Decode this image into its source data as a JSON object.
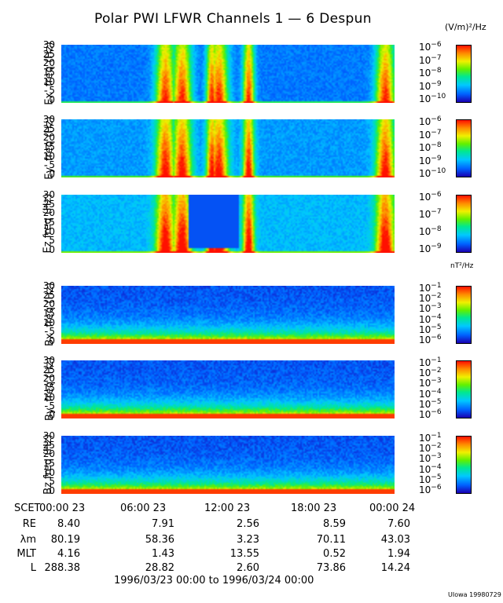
{
  "title": "Polar PWI LFWR Channels 1 — 6 Despun",
  "units_e": "(V/m)²/Hz",
  "units_b": "nT²/Hz",
  "chart_data": {
    "type": "heatmap",
    "panels": [
      {
        "ylabel": "Ex' freq (Hz)",
        "yticks": [
          "0",
          "5",
          "10",
          "15",
          "20",
          "25",
          "30"
        ],
        "ylim": [
          0,
          30
        ],
        "colorbar_exponents": [
          "-6",
          "-7",
          "-8",
          "-9",
          "-10"
        ],
        "clim": [
          -10,
          -6
        ],
        "shift": 0.0
      },
      {
        "ylabel": "Ey' freq (Hz)",
        "yticks": [
          "0",
          "5",
          "10",
          "15",
          "20",
          "25",
          "30"
        ],
        "ylim": [
          0,
          30
        ],
        "colorbar_exponents": [
          "-6",
          "-7",
          "-8",
          "-9",
          "-10"
        ],
        "clim": [
          -10,
          -6
        ],
        "shift": 0.05
      },
      {
        "ylabel": "Ez freq (Hz)",
        "yticks": [
          "0",
          "5",
          "10",
          "15",
          "20",
          "25",
          "30"
        ],
        "ylim": [
          0,
          30
        ],
        "colorbar_exponents": [
          "-6",
          "-7",
          "-8",
          "-9"
        ],
        "clim": [
          -9,
          -6
        ],
        "shift": 0.1
      },
      {
        "ylabel": "Bx' freq (Hz)",
        "yticks": [
          "0",
          "5",
          "10",
          "15",
          "20",
          "25",
          "30"
        ],
        "ylim": [
          0,
          30
        ],
        "colorbar_exponents": [
          "-1",
          "-2",
          "-3",
          "-4",
          "-5",
          "-6"
        ],
        "clim": [
          -6,
          -1
        ],
        "shift": 0.0
      },
      {
        "ylabel": "By' freq (Hz)",
        "yticks": [
          "0",
          "5",
          "10",
          "15",
          "20",
          "25",
          "30"
        ],
        "ylim": [
          0,
          30
        ],
        "colorbar_exponents": [
          "-1",
          "-2",
          "-3",
          "-4",
          "-5",
          "-6"
        ],
        "clim": [
          -6,
          -1
        ],
        "shift": 0.0
      },
      {
        "ylabel": "Bz freq (Hz)",
        "yticks": [
          "0",
          "5",
          "10",
          "15",
          "20",
          "25",
          "30"
        ],
        "ylim": [
          0,
          30
        ],
        "colorbar_exponents": [
          "-1",
          "-2",
          "-3",
          "-4",
          "-5",
          "-6"
        ],
        "clim": [
          -6,
          -1
        ],
        "shift": 0.0
      }
    ],
    "x_tick_labels": [
      "00:00 23",
      "06:00 23",
      "12:00 23",
      "18:00 23",
      "00:00 24"
    ],
    "x_range_label": "1996/03/23 00:00 to 1996/03/24 00:00"
  },
  "ephemeris": {
    "scet_label": "SCET",
    "rows": [
      {
        "label": "RE",
        "values": [
          "8.40",
          "7.91",
          "2.56",
          "8.59",
          "7.60"
        ]
      },
      {
        "label": "λm",
        "values": [
          "80.19",
          "58.36",
          "3.23",
          "70.11",
          "43.03"
        ]
      },
      {
        "label": "MLT",
        "values": [
          "4.16",
          "1.43",
          "13.55",
          "0.52",
          "1.94"
        ]
      },
      {
        "label": "L",
        "values": [
          "288.38",
          "28.82",
          "2.60",
          "73.86",
          "14.24"
        ]
      }
    ]
  },
  "credit": "UIowa 19980729"
}
